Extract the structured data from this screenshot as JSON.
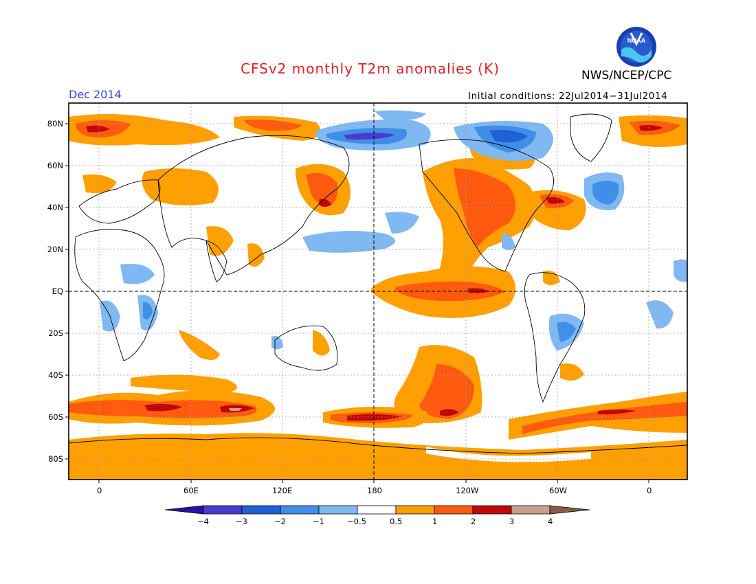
{
  "header": {
    "title": "CFSv2 monthly T2m anomalies (K)",
    "agency": "NWS/NCEP/CPC",
    "month": "Dec 2014",
    "initial_conditions": "Initial conditions: 22Jul2014−31Jul2014"
  },
  "logo": {
    "icon": "noaa-logo-icon",
    "text": "NOAA"
  },
  "axes": {
    "lat_labels": [
      "80N",
      "60N",
      "40N",
      "20N",
      "EQ",
      "20S",
      "40S",
      "60S",
      "80S"
    ],
    "lon_labels": [
      "0",
      "60E",
      "120E",
      "180",
      "120W",
      "60W",
      "0"
    ]
  },
  "colorbar": {
    "labels": [
      "−4",
      "−3",
      "−2",
      "−1",
      "−0.5",
      "0.5",
      "1",
      "2",
      "3",
      "4"
    ],
    "colors": [
      "#2810a8",
      "#4a3bd0",
      "#2062d6",
      "#3f8ee8",
      "#80b8f2",
      "#ffffff",
      "#ffa000",
      "#ff5a10",
      "#c80000",
      "#a00000",
      "#c8a090",
      "#8a5a48"
    ]
  },
  "colors": {
    "title": "#e02020",
    "month": "#2b45d8",
    "warm_weak": "#ffa000",
    "warm_mid": "#ff5a10",
    "warm_strong": "#c00808",
    "warm_max": "#c8a090",
    "cool_weak": "#80b8f2",
    "cool_mid": "#3f8ee8",
    "cool_strong": "#2062d6",
    "cool_max": "#4a3bd0"
  }
}
